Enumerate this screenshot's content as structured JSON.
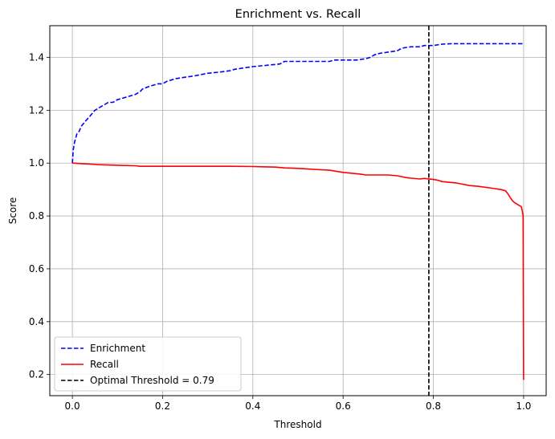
{
  "chart_data": {
    "type": "line",
    "title": "Enrichment vs. Recall",
    "xlabel": "Threshold",
    "ylabel": "Score",
    "xlim": [
      -0.05,
      1.05
    ],
    "ylim": [
      0.12,
      1.52
    ],
    "xticks": [
      0.0,
      0.2,
      0.4,
      0.6,
      0.8,
      1.0
    ],
    "xtick_labels": [
      "0.0",
      "0.2",
      "0.4",
      "0.6",
      "0.8",
      "1.0"
    ],
    "yticks": [
      0.2,
      0.4,
      0.6,
      0.8,
      1.0,
      1.2,
      1.4
    ],
    "ytick_labels": [
      "0.2",
      "0.4",
      "0.6",
      "0.8",
      "1.0",
      "1.2",
      "1.4"
    ],
    "grid": true,
    "legend_position": "lower-left",
    "series": [
      {
        "name": "Enrichment",
        "color": "#0000ff",
        "linestyle": "dashed",
        "x": [
          0.0,
          0.002,
          0.005,
          0.01,
          0.015,
          0.02,
          0.025,
          0.03,
          0.04,
          0.05,
          0.06,
          0.07,
          0.08,
          0.09,
          0.1,
          0.12,
          0.14,
          0.15,
          0.155,
          0.17,
          0.19,
          0.2,
          0.21,
          0.23,
          0.25,
          0.27,
          0.3,
          0.33,
          0.35,
          0.36,
          0.4,
          0.43,
          0.46,
          0.47,
          0.5,
          0.57,
          0.58,
          0.63,
          0.65,
          0.66,
          0.67,
          0.68,
          0.7,
          0.72,
          0.73,
          0.75,
          0.77,
          0.78,
          0.8,
          0.82,
          0.84,
          0.86,
          0.9,
          0.95,
          1.0
        ],
        "y": [
          1.0,
          1.05,
          1.08,
          1.11,
          1.12,
          1.14,
          1.15,
          1.16,
          1.18,
          1.2,
          1.21,
          1.22,
          1.23,
          1.23,
          1.24,
          1.25,
          1.26,
          1.27,
          1.28,
          1.29,
          1.3,
          1.3,
          1.31,
          1.32,
          1.325,
          1.33,
          1.34,
          1.345,
          1.35,
          1.355,
          1.365,
          1.37,
          1.375,
          1.385,
          1.385,
          1.385,
          1.39,
          1.39,
          1.395,
          1.4,
          1.41,
          1.415,
          1.42,
          1.425,
          1.435,
          1.44,
          1.44,
          1.445,
          1.445,
          1.45,
          1.452,
          1.452,
          1.452,
          1.452,
          1.452
        ]
      },
      {
        "name": "Recall",
        "color": "#ff0000",
        "linestyle": "solid",
        "x": [
          0.0,
          0.02,
          0.04,
          0.06,
          0.1,
          0.14,
          0.15,
          0.2,
          0.25,
          0.3,
          0.35,
          0.4,
          0.42,
          0.45,
          0.47,
          0.5,
          0.55,
          0.57,
          0.6,
          0.64,
          0.65,
          0.7,
          0.72,
          0.74,
          0.75,
          0.77,
          0.78,
          0.8,
          0.81,
          0.82,
          0.85,
          0.88,
          0.9,
          0.93,
          0.95,
          0.96,
          0.965,
          0.97,
          0.975,
          0.98,
          0.99,
          0.995,
          0.997,
          0.999,
          1.0
        ],
        "y": [
          1.0,
          0.998,
          0.996,
          0.994,
          0.992,
          0.99,
          0.988,
          0.988,
          0.988,
          0.988,
          0.988,
          0.987,
          0.986,
          0.985,
          0.982,
          0.98,
          0.975,
          0.973,
          0.965,
          0.958,
          0.955,
          0.955,
          0.952,
          0.945,
          0.943,
          0.94,
          0.942,
          0.938,
          0.935,
          0.93,
          0.925,
          0.915,
          0.912,
          0.905,
          0.9,
          0.895,
          0.885,
          0.87,
          0.858,
          0.85,
          0.84,
          0.835,
          0.82,
          0.8,
          0.18
        ]
      },
      {
        "name": "Optimal Threshold = 0.79",
        "color": "#000000",
        "linestyle": "dashed",
        "vline": 0.79
      }
    ]
  }
}
